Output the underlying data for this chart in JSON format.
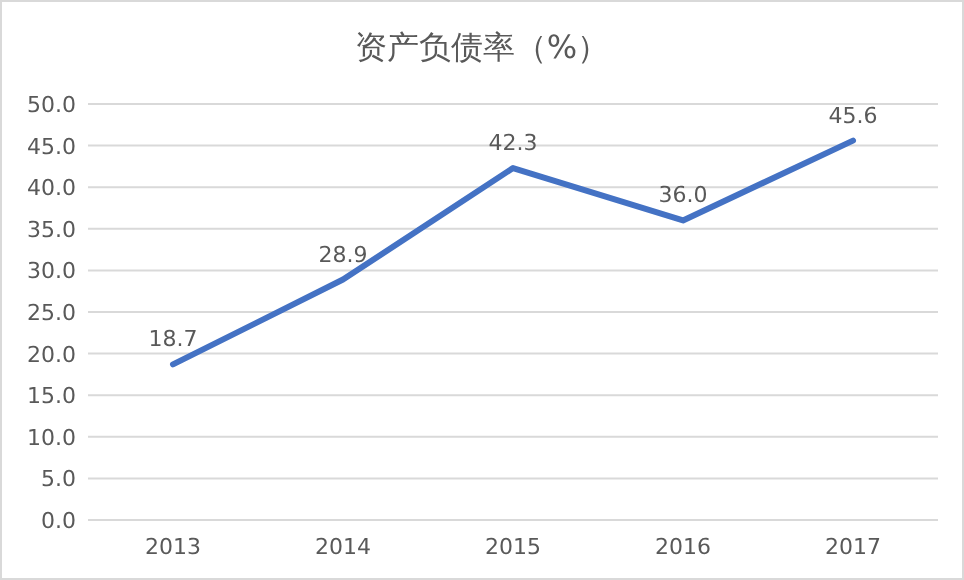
{
  "chart_data": {
    "type": "line",
    "title": "资产负债率（%）",
    "categories": [
      "2013",
      "2014",
      "2015",
      "2016",
      "2017"
    ],
    "series": [
      {
        "color": "#4472c4",
        "values": [
          18.7,
          28.9,
          42.3,
          36.0,
          45.6
        ],
        "value_labels": [
          "18.7",
          "28.9",
          "42.3",
          "36.0",
          "45.6"
        ]
      }
    ],
    "ylim": [
      0,
      50
    ],
    "yticks": [
      {
        "value": 0,
        "label": "0.0"
      },
      {
        "value": 5,
        "label": "5.0"
      },
      {
        "value": 10,
        "label": "10.0"
      },
      {
        "value": 15,
        "label": "15.0"
      },
      {
        "value": 20,
        "label": "20.0"
      },
      {
        "value": 25,
        "label": "25.0"
      },
      {
        "value": 30,
        "label": "30.0"
      },
      {
        "value": 35,
        "label": "35.0"
      },
      {
        "value": 40,
        "label": "40.0"
      },
      {
        "value": 45,
        "label": "45.0"
      },
      {
        "value": 50,
        "label": "50.0"
      }
    ],
    "grid": "y",
    "marker": "none",
    "line_style": "solid"
  }
}
